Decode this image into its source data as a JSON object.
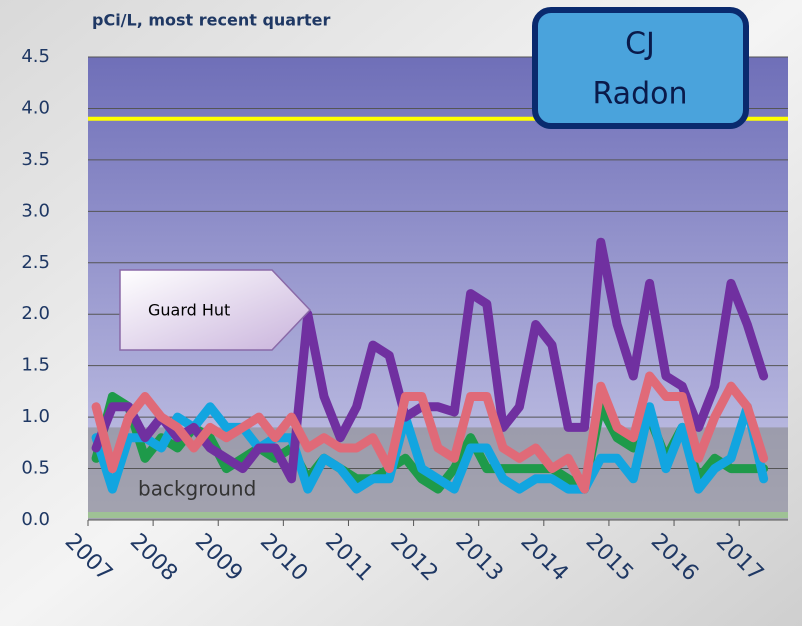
{
  "chart_data": {
    "type": "line",
    "title": "pCi/L, most recent quarter",
    "badge_lines": [
      "CJ",
      "Radon"
    ],
    "callout": "Guard Hut",
    "band": {
      "label": "background",
      "range": [
        0,
        0.9
      ]
    },
    "reference_line": {
      "value": 3.9,
      "color": "#ffff00"
    },
    "x": [
      2007.125,
      2007.375,
      2007.625,
      2007.875,
      2008.125,
      2008.375,
      2008.625,
      2008.875,
      2009.125,
      2009.375,
      2009.625,
      2009.875,
      2010.125,
      2010.375,
      2010.625,
      2010.875,
      2011.125,
      2011.375,
      2011.625,
      2011.875,
      2012.125,
      2012.375,
      2012.625,
      2012.875,
      2013.125,
      2013.375,
      2013.625,
      2013.875,
      2014.125,
      2014.375,
      2014.625,
      2014.875,
      2015.125,
      2015.375,
      2015.625,
      2015.875,
      2016.125,
      2016.375,
      2016.625,
      2016.875,
      2017.125,
      2017.375
    ],
    "series": [
      {
        "color": "#1e9a4a",
        "values": [
          0.6,
          1.2,
          1.1,
          0.6,
          0.8,
          0.7,
          0.9,
          0.8,
          0.5,
          0.6,
          0.7,
          0.6,
          0.7,
          0.4,
          0.6,
          0.5,
          0.4,
          0.4,
          0.5,
          0.6,
          0.4,
          0.3,
          0.5,
          0.8,
          0.5,
          0.5,
          0.5,
          0.5,
          0.5,
          0.4,
          0.3,
          1.1,
          0.8,
          0.7,
          1.0,
          0.6,
          0.9,
          0.4,
          0.6,
          0.5,
          0.5,
          0.5
        ]
      },
      {
        "color": "#12a5e0",
        "values": [
          0.8,
          0.3,
          0.8,
          0.8,
          0.7,
          1.0,
          0.9,
          1.1,
          0.9,
          0.9,
          0.7,
          0.8,
          0.8,
          0.3,
          0.6,
          0.5,
          0.3,
          0.4,
          0.4,
          1.0,
          0.5,
          0.4,
          0.3,
          0.7,
          0.7,
          0.4,
          0.3,
          0.4,
          0.4,
          0.3,
          0.3,
          0.6,
          0.6,
          0.4,
          1.1,
          0.5,
          0.9,
          0.3,
          0.5,
          0.6,
          1.1,
          0.4
        ]
      },
      {
        "color": "#7030a0",
        "values": [
          0.7,
          1.1,
          1.1,
          0.8,
          1.0,
          0.8,
          0.9,
          0.7,
          0.6,
          0.5,
          0.7,
          0.7,
          0.4,
          2.0,
          1.2,
          0.8,
          1.1,
          1.7,
          1.6,
          1.0,
          1.1,
          1.1,
          1.05,
          2.2,
          2.1,
          0.9,
          1.1,
          1.9,
          1.7,
          0.9,
          0.9,
          2.7,
          1.9,
          1.4,
          2.3,
          1.4,
          1.3,
          0.9,
          1.3,
          2.3,
          1.9,
          1.4
        ]
      },
      {
        "color": "#e06a78",
        "values": [
          1.1,
          0.5,
          1.0,
          1.2,
          1.0,
          0.9,
          0.7,
          0.9,
          0.8,
          0.9,
          1.0,
          0.8,
          1.0,
          0.7,
          0.8,
          0.7,
          0.7,
          0.8,
          0.5,
          1.2,
          1.2,
          0.7,
          0.6,
          1.2,
          1.2,
          0.7,
          0.6,
          0.7,
          0.5,
          0.6,
          0.3,
          1.3,
          0.9,
          0.8,
          1.4,
          1.2,
          1.2,
          0.6,
          1.0,
          1.3,
          1.1,
          0.6
        ]
      }
    ],
    "xlim": [
      2007,
      2017.75
    ],
    "xticks": [
      2007,
      2008,
      2009,
      2010,
      2011,
      2012,
      2013,
      2014,
      2015,
      2016,
      2017
    ],
    "ylim": [
      0,
      4.5
    ],
    "yticks": [
      {
        "value": 0,
        "label": "0.0"
      },
      0.5,
      {
        "value": 1,
        "label": "1.0"
      },
      1.5,
      {
        "value": 2,
        "label": "2.0"
      },
      2.5,
      {
        "value": 3,
        "label": "3.0"
      },
      3.5,
      {
        "value": 4,
        "label": "4.0"
      },
      4.5
    ],
    "grid": true
  }
}
